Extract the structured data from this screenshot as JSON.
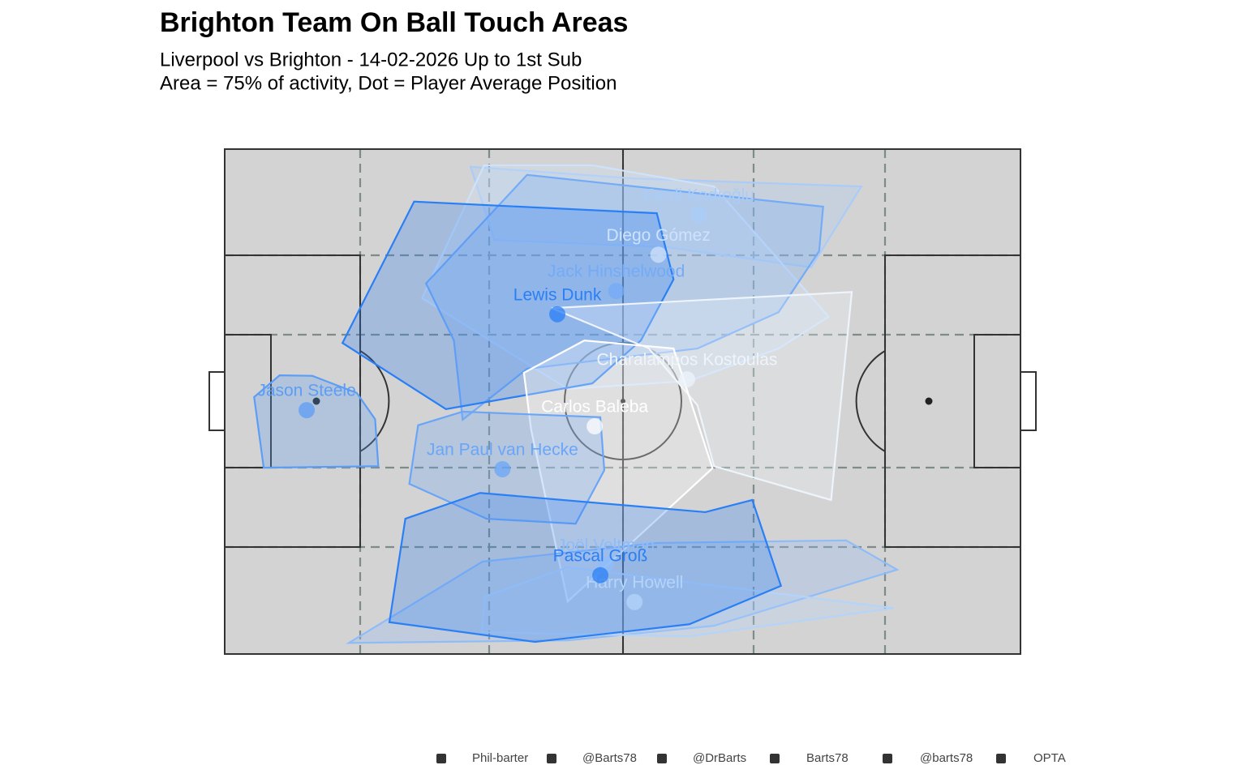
{
  "chart_data": {
    "type": "pitch",
    "title": "Brighton Team On Ball Touch Areas",
    "subtitle": [
      "Liverpool vs Brighton - 14-02-2026 Up to 1st Sub",
      "Area = 75% of activity, Dot = Player Average Position"
    ],
    "xlim": [
      0,
      100
    ],
    "ylim": [
      0,
      100
    ],
    "players": [
      {
        "name": "Ferdi Kadıoğlu",
        "color": "#a9ccf8",
        "x": 59.6,
        "y": 87.0,
        "hull": {
          "x": [
            33.9,
            30.9,
            51.3,
            80.0,
            73.7,
            55.4
          ],
          "y": [
            82.0,
            96.5,
            94.2,
            92.6,
            76.6,
            80.6
          ]
        }
      },
      {
        "name": "Diego Gómez",
        "color": "#cfe2fb",
        "x": 54.5,
        "y": 79.1,
        "hull": {
          "x": [
            24.8,
            32.6,
            46.2,
            61.5,
            75.9,
            69.6,
            58.4,
            43.1
          ],
          "y": [
            70.5,
            96.8,
            96.8,
            92.6,
            66.8,
            60.5,
            54.1,
            52.5
          ]
        }
      },
      {
        "name": "Jack Hinshelwood",
        "color": "#74abf7",
        "x": 49.2,
        "y": 71.9,
        "hull": {
          "x": [
            25.3,
            38.0,
            75.2,
            74.7,
            69.6,
            59.4,
            38.0,
            29.9,
            28.8
          ],
          "y": [
            73.4,
            94.9,
            88.6,
            79.8,
            67.7,
            60.5,
            56.5,
            46.4,
            62.1
          ]
        }
      },
      {
        "name": "Lewis Dunk",
        "color": "#2a7ff5",
        "x": 41.8,
        "y": 67.3,
        "hull": {
          "x": [
            14.8,
            23.8,
            54.3,
            56.4,
            52.3,
            46.2,
            27.8
          ],
          "y": [
            61.6,
            89.6,
            87.3,
            74.2,
            62.1,
            53.6,
            48.5
          ]
        }
      },
      {
        "name": "Charalampos Kostoulas",
        "color": "#eef4fb",
        "x": 58.1,
        "y": 54.4,
        "hull": {
          "x": [
            41.1,
            78.8,
            76.2,
            61.5,
            59.4,
            53.3
          ],
          "y": [
            68.5,
            71.7,
            30.5,
            37.2,
            49.3,
            60.5
          ]
        }
      },
      {
        "name": "Carlos Baleba",
        "color": "#ffffff",
        "x": 46.5,
        "y": 45.1,
        "hull": {
          "x": [
            37.6,
            45.2,
            56.4,
            61.3,
            43.1,
            38.5
          ],
          "y": [
            55.7,
            62.1,
            60.5,
            36.8,
            10.4,
            44.5
          ]
        }
      },
      {
        "name": "Jason Steele",
        "color": "#5c9df5",
        "x": 10.3,
        "y": 48.3,
        "hull": {
          "x": [
            4.9,
            19.3,
            18.9,
            16.6,
            11.0,
            6.9,
            3.7
          ],
          "y": [
            36.9,
            37.2,
            46.5,
            51.7,
            55.1,
            55.2,
            50.9
          ]
        }
      },
      {
        "name": "Jan Paul van Hecke",
        "color": "#6aa6f7",
        "x": 34.9,
        "y": 36.6,
        "hull": {
          "x": [
            23.2,
            24.3,
            29.9,
            47.2,
            47.7,
            44.1,
            32.9
          ],
          "y": [
            33.7,
            45.3,
            48.0,
            46.9,
            36.4,
            25.8,
            26.8
          ]
        }
      },
      {
        "name": "Joël Veltman",
        "color": "#8ebcf9",
        "x": 47.9,
        "y": 17.7,
        "hull": {
          "x": [
            15.6,
            32.4,
            54.3,
            78.1,
            84.5,
            61.5,
            43.1
          ],
          "y": [
            2.2,
            18.3,
            22.0,
            22.5,
            16.7,
            5.6,
            2.7
          ]
        }
      },
      {
        "name": "Harry Howell",
        "color": "#b4d4fa",
        "x": 51.5,
        "y": 10.3,
        "hull": {
          "x": [
            32.7,
            43.1,
            84.1,
            58.4,
            32.3
          ],
          "y": [
            11.4,
            17.2,
            9.1,
            3.5,
            4.3
          ]
        }
      },
      {
        "name": "Pascal Groß",
        "color": "#2a7ff5",
        "x": 47.2,
        "y": 15.6,
        "hull": {
          "x": [
            20.7,
            22.7,
            32.1,
            60.4,
            66.3,
            69.9,
            58.4,
            39.0
          ],
          "y": [
            6.3,
            26.8,
            31.9,
            28.1,
            30.5,
            13.5,
            5.9,
            2.4
          ]
        }
      }
    ],
    "footer": [
      "Phil-barter",
      "@Barts78",
      "@DrBarts",
      "Barts78",
      "@barts78",
      "OPTA"
    ]
  }
}
